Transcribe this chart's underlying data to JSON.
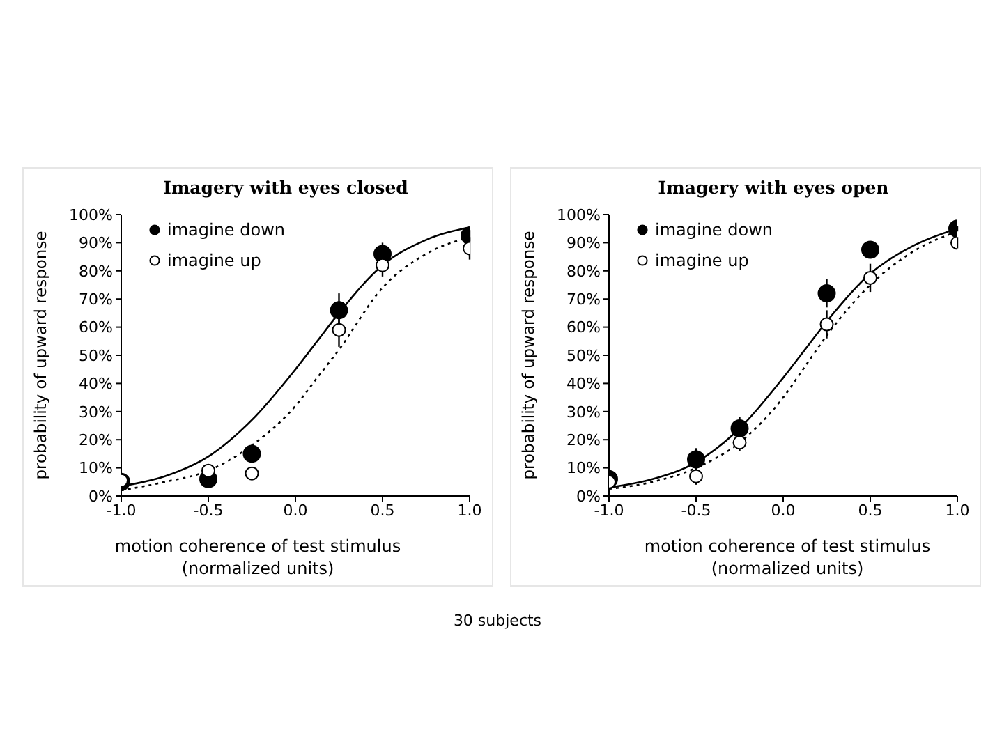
{
  "chart_data": [
    {
      "type": "scatter",
      "title": "Imagery with eyes closed",
      "xlabel": "motion coherence of test stimulus (normalized units)",
      "ylabel": "probability of upward response",
      "xlim": [
        -1,
        1
      ],
      "xticks": [
        {
          "value": -1,
          "label": "-1.0"
        },
        {
          "value": -0.5,
          "label": "-0.5"
        },
        {
          "value": 0,
          "label": "0.0"
        },
        {
          "value": 0.5,
          "label": "0.5"
        },
        {
          "value": 1,
          "label": "1.0"
        }
      ],
      "ylim": [
        0,
        100
      ],
      "yticks": [
        {
          "value": 0,
          "label": "0%"
        },
        {
          "value": 10,
          "label": "10%"
        },
        {
          "value": 20,
          "label": "20%"
        },
        {
          "value": 30,
          "label": "30%"
        },
        {
          "value": 40,
          "label": "40%"
        },
        {
          "value": 50,
          "label": "50%"
        },
        {
          "value": 60,
          "label": "60%"
        },
        {
          "value": 70,
          "label": "70%"
        },
        {
          "value": 80,
          "label": "80%"
        },
        {
          "value": 90,
          "label": "90%"
        },
        {
          "value": 100,
          "label": "100%"
        }
      ],
      "grid": false,
      "legend": "top left",
      "marker": "circle",
      "series": [
        {
          "type": "line",
          "color": "#000000",
          "line_style": "solid",
          "marker": "none",
          "x": [
            -1,
            -0.75,
            -0.5,
            -0.25,
            0,
            0.125,
            0.25,
            0.5,
            0.75,
            1
          ],
          "values": [
            3.5,
            7,
            14,
            27,
            45,
            55,
            65,
            82,
            91,
            95.5
          ]
        },
        {
          "type": "line",
          "color": "#000000",
          "line_style": "dotted",
          "marker": "none",
          "x": [
            -1,
            -0.75,
            -0.5,
            -0.25,
            0,
            0.125,
            0.25,
            0.5,
            0.75,
            1
          ],
          "values": [
            2,
            5,
            9,
            18,
            32,
            42,
            52,
            74,
            86,
            92
          ]
        },
        {
          "type": "scatter",
          "name": "imagine down",
          "color": "#000000",
          "x": [
            -1,
            -0.5,
            -0.25,
            0.25,
            0.5,
            1
          ],
          "values": [
            5,
            6,
            15,
            66,
            86,
            92.5
          ],
          "errors": [
            null,
            null,
            3,
            6,
            4,
            2
          ]
        },
        {
          "type": "scatter",
          "name": "imagine up",
          "color": "#ffffff",
          "x": [
            -1,
            -0.5,
            -0.25,
            0.25,
            0.5,
            1
          ],
          "values": [
            5.5,
            9,
            8,
            59,
            82,
            88
          ],
          "errors": [
            null,
            null,
            null,
            6,
            4,
            4
          ]
        }
      ]
    },
    {
      "type": "scatter",
      "title": "Imagery with eyes open",
      "xlabel": "motion coherence of test stimulus (normalized units)",
      "ylabel": "probability of upward response",
      "xlim": [
        -1,
        1
      ],
      "xticks": [
        {
          "value": -1,
          "label": "-1.0"
        },
        {
          "value": -0.5,
          "label": "-0.5"
        },
        {
          "value": 0,
          "label": "0.0"
        },
        {
          "value": 0.5,
          "label": "0.5"
        },
        {
          "value": 1,
          "label": "1.0"
        }
      ],
      "ylim": [
        0,
        100
      ],
      "yticks": [
        {
          "value": 0,
          "label": "0%"
        },
        {
          "value": 10,
          "label": "10%"
        },
        {
          "value": 20,
          "label": "20%"
        },
        {
          "value": 30,
          "label": "30%"
        },
        {
          "value": 40,
          "label": "40%"
        },
        {
          "value": 50,
          "label": "50%"
        },
        {
          "value": 60,
          "label": "60%"
        },
        {
          "value": 70,
          "label": "70%"
        },
        {
          "value": 80,
          "label": "80%"
        },
        {
          "value": 90,
          "label": "90%"
        },
        {
          "value": 100,
          "label": "100%"
        }
      ],
      "grid": false,
      "legend": "top left",
      "marker": "circle",
      "annotations": [
        "30 subjects"
      ],
      "series": [
        {
          "type": "line",
          "color": "#000000",
          "line_style": "solid",
          "marker": "none",
          "x": [
            -1,
            -0.75,
            -0.5,
            -0.25,
            0,
            0.125,
            0.25,
            0.5,
            0.75,
            1
          ],
          "values": [
            3,
            6,
            12,
            24,
            42,
            52,
            62,
            79,
            89,
            95
          ]
        },
        {
          "type": "line",
          "color": "#000000",
          "line_style": "dotted",
          "marker": "none",
          "x": [
            -1,
            -0.75,
            -0.5,
            -0.25,
            0,
            0.125,
            0.25,
            0.5,
            0.75,
            1
          ],
          "values": [
            2.5,
            5,
            10,
            19,
            35,
            46,
            57,
            75,
            87,
            94
          ]
        },
        {
          "type": "scatter",
          "name": "imagine down",
          "color": "#000000",
          "x": [
            -1,
            -0.5,
            -0.25,
            0.25,
            0.5,
            1
          ],
          "values": [
            6,
            13,
            24,
            72,
            87.5,
            95
          ],
          "errors": [
            null,
            4,
            4,
            5,
            3,
            1
          ]
        },
        {
          "type": "scatter",
          "name": "imagine up",
          "color": "#ffffff",
          "x": [
            -1,
            -0.5,
            -0.25,
            0.25,
            0.5,
            1
          ],
          "values": [
            5,
            7,
            19,
            61,
            77.5,
            90
          ],
          "errors": [
            null,
            3,
            3,
            5,
            5,
            2
          ]
        }
      ]
    }
  ]
}
